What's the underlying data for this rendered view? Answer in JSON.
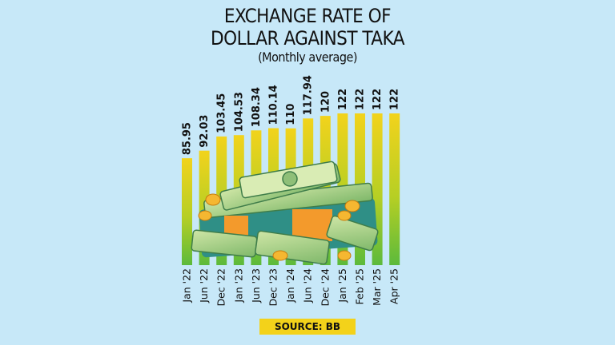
{
  "chart_data": {
    "type": "bar",
    "title_line1": "EXCHANGE RATE OF",
    "title_line2": "DOLLAR AGAINST TAKA",
    "subtitle": "(Monthly average)",
    "categories": [
      "Jan '22",
      "Jun '22",
      "Dec '22",
      "Jan '23",
      "Jun '23",
      "Dec '23",
      "Jan '24",
      "Jun '24",
      "Dec '24",
      "Jan '25",
      "Feb '25",
      "Mar '25",
      "Apr '25"
    ],
    "values": [
      85.95,
      92.03,
      103.45,
      104.53,
      108.34,
      110.14,
      110,
      117.94,
      120,
      122,
      122,
      122,
      122
    ],
    "value_labels": [
      "85.95",
      "92.03",
      "103.45",
      "104.53",
      "108.34",
      "110.14",
      "110",
      "117.94",
      "120",
      "122",
      "122",
      "122",
      "122"
    ],
    "ylim": [
      0,
      122
    ],
    "bar_colors": {
      "top": "#f2d31c",
      "bottom": "#5cba3c"
    },
    "grid": false,
    "legend": "none",
    "source": "SOURCE: BB"
  },
  "illustration": "money-stack-icon"
}
